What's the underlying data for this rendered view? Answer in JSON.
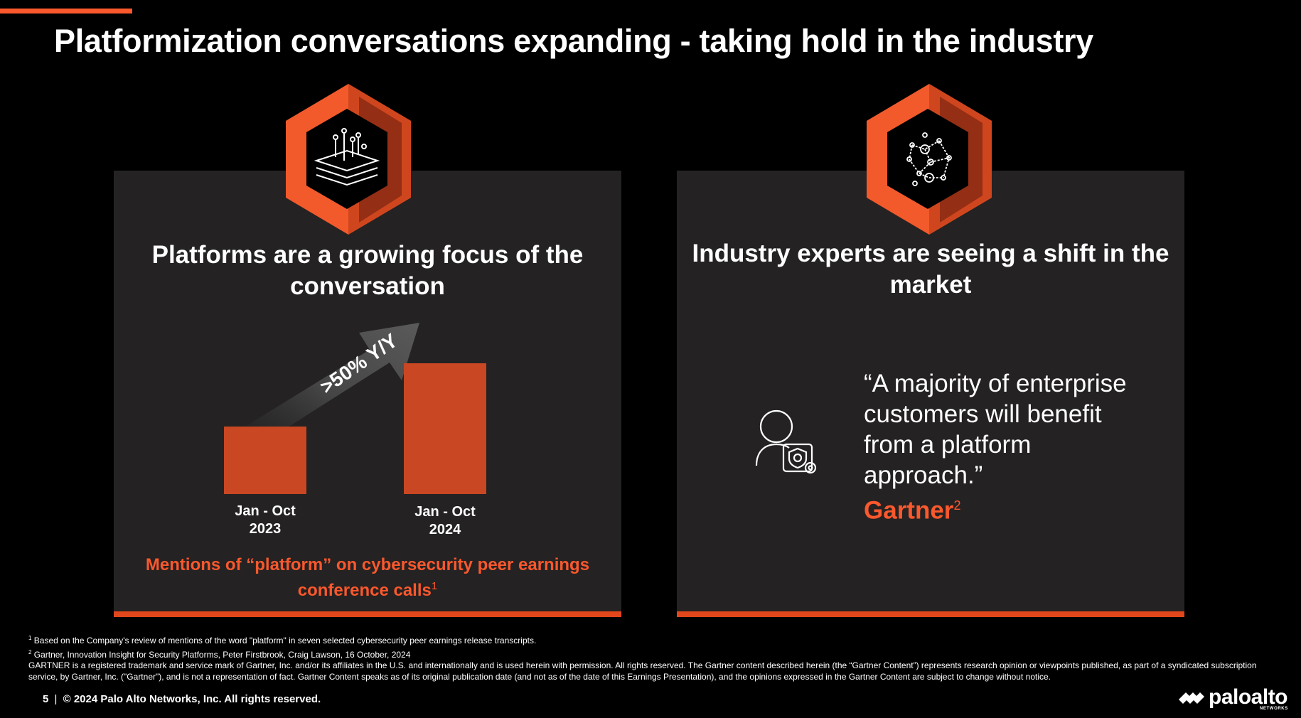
{
  "title": "Platformization conversations expanding - taking hold in the industry",
  "left_panel": {
    "heading": "Platforms are a growing focus of the conversation",
    "growth_label": ">50% Y/Y",
    "bars": [
      {
        "label_line1": "Jan - Oct",
        "label_line2": "2023"
      },
      {
        "label_line1": "Jan - Oct",
        "label_line2": "2024"
      }
    ],
    "caption": "Mentions of “platform” on cybersecurity peer earnings conference calls",
    "caption_ref": "1"
  },
  "right_panel": {
    "heading": "Industry experts are seeing a shift in the market",
    "quote": "“A majority of enterprise customers will benefit from a platform approach.”",
    "source": "Gartner",
    "source_ref": "2"
  },
  "footnotes": {
    "note1_ref": "1",
    "note1": "Based on the Company's review of mentions of the word \"platform\" in seven selected cybersecurity peer earnings release transcripts.",
    "note2_ref": "2",
    "note2": "Gartner, Innovation Insight for Security Platforms, Peter Firstbrook, Craig Lawson, 16 October, 2024",
    "disclaimer": "GARTNER is a registered trademark and service mark of Gartner, Inc. and/or its affiliates in the U.S. and internationally and is used herein with permission. All rights reserved. The Gartner content described herein (the “Gartner Content”) represents research opinion or viewpoints published, as part of a syndicated subscription service, by Gartner, Inc. (\"Gartner\"), and is not a representation of fact. Gartner Content speaks as of its original publication date (and not as of the date of this Earnings Presentation), and the opinions expressed in the Gartner Content are subject to change without notice."
  },
  "footer": {
    "page_number": "5",
    "separator": "|",
    "copyright": "© 2024 Palo Alto Networks, Inc. All rights reserved."
  },
  "logo": {
    "word": "paloalto",
    "sub": "NETWORKS"
  },
  "colors": {
    "accent": "#fa582d",
    "bar": "#c94722",
    "panel": "#242222",
    "background": "#000000"
  },
  "icons": [
    "layers-network-icon",
    "network-nodes-icon",
    "user-shield-icon",
    "growth-arrow-icon",
    "paloalto-logo-icon"
  ]
}
